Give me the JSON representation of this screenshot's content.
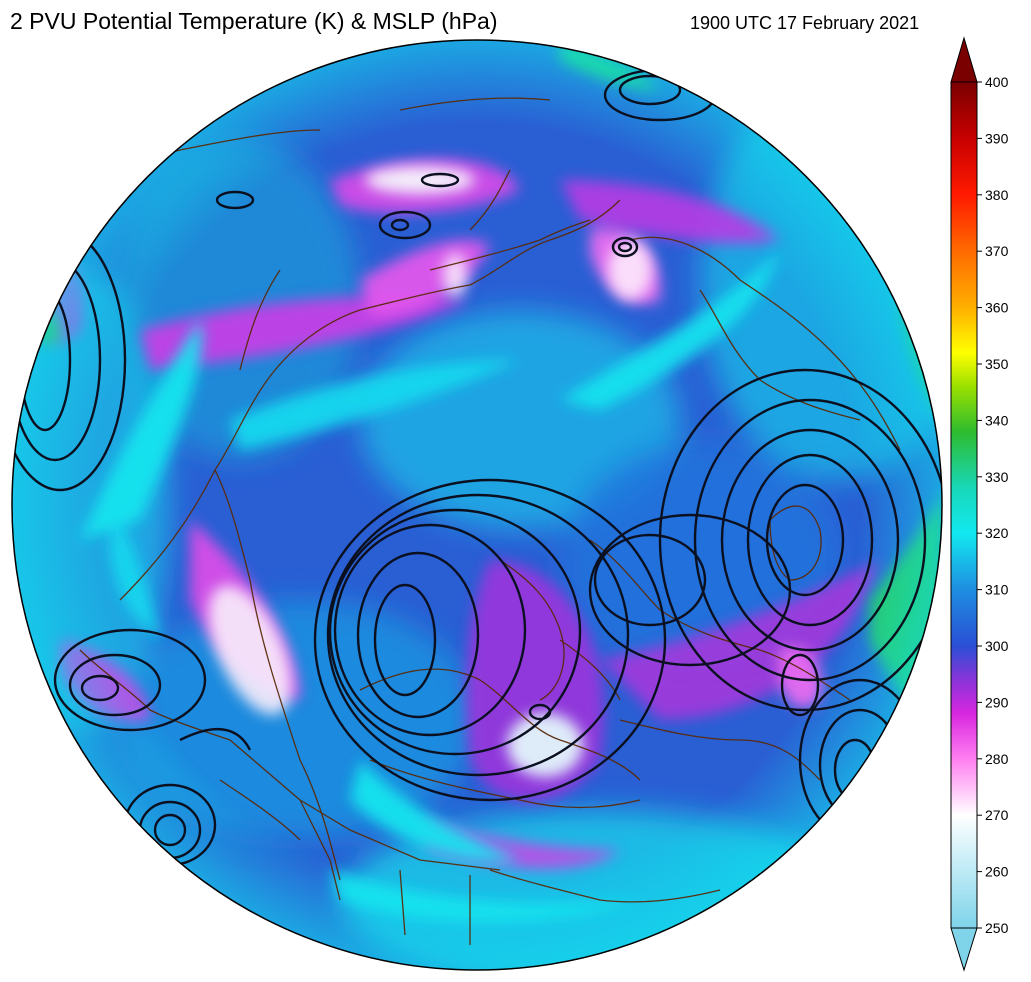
{
  "header": {
    "title": "2 PVU Potential Temperature (K) & MSLP (hPa)",
    "timestamp": "1900 UTC 17 February 2021"
  },
  "colorbar": {
    "ticks": [
      400,
      390,
      380,
      370,
      360,
      350,
      340,
      330,
      320,
      310,
      300,
      290,
      280,
      270,
      260,
      250
    ],
    "min": 250,
    "max": 400,
    "extend": "both",
    "stops": [
      {
        "value": 250,
        "color": "#7fd4ea"
      },
      {
        "value": 262,
        "color": "#c9eef7"
      },
      {
        "value": 270,
        "color": "#ffffff"
      },
      {
        "value": 280,
        "color": "#ff7ff0"
      },
      {
        "value": 288,
        "color": "#d827e0"
      },
      {
        "value": 294,
        "color": "#8a34d8"
      },
      {
        "value": 300,
        "color": "#2a4fd6"
      },
      {
        "value": 310,
        "color": "#1e8ee0"
      },
      {
        "value": 320,
        "color": "#12e8f0"
      },
      {
        "value": 328,
        "color": "#18d8b8"
      },
      {
        "value": 338,
        "color": "#2ebc2e"
      },
      {
        "value": 346,
        "color": "#9be000"
      },
      {
        "value": 352,
        "color": "#ffff00"
      },
      {
        "value": 360,
        "color": "#ffb000"
      },
      {
        "value": 370,
        "color": "#ff6a00"
      },
      {
        "value": 380,
        "color": "#ff1a00"
      },
      {
        "value": 390,
        "color": "#c80000"
      },
      {
        "value": 400,
        "color": "#7a0000"
      }
    ]
  },
  "map": {
    "projection": "north-polar-orthographic",
    "field_colors": {
      "ocean_base": "#2a62d6",
      "trough_purple": "#b23be8",
      "low_theta_pink": "#f07af0",
      "low_theta_white": "#f4f4fb",
      "ridge_cyan": "#18e6ee",
      "ridge_green": "#2cd05a",
      "ridge_orange": "#ff7a00",
      "coastline": "#5a2a08",
      "isobar": "#0b1020"
    }
  }
}
